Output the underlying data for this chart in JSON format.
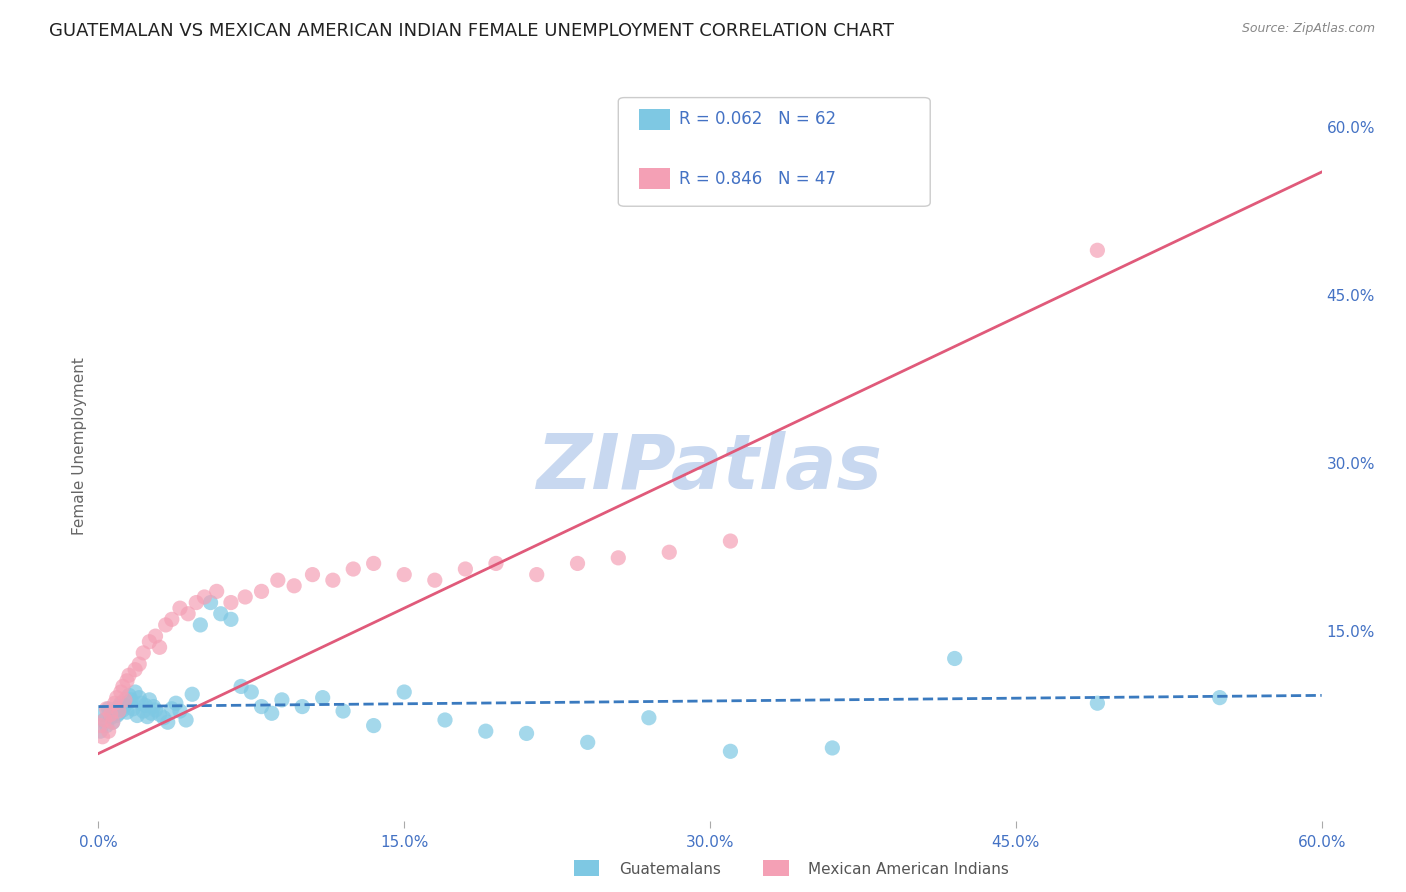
{
  "title": "GUATEMALAN VS MEXICAN AMERICAN INDIAN FEMALE UNEMPLOYMENT CORRELATION CHART",
  "source": "Source: ZipAtlas.com",
  "ylabel": "Female Unemployment",
  "watermark": "ZIPatlas",
  "xlim": [
    0.0,
    0.6
  ],
  "ylim": [
    -0.02,
    0.65
  ],
  "xticks": [
    0.0,
    0.15,
    0.3,
    0.45,
    0.6
  ],
  "xtick_labels": [
    "0.0%",
    "15.0%",
    "30.0%",
    "45.0%",
    "60.0%"
  ],
  "right_yticks": [
    0.6,
    0.45,
    0.3,
    0.15
  ],
  "right_ytick_labels": [
    "60.0%",
    "45.0%",
    "30.0%",
    "15.0%"
  ],
  "blue_color": "#7ec8e3",
  "pink_color": "#f4a0b5",
  "blue_line_color": "#3a7abf",
  "pink_line_color": "#e05a7a",
  "axis_tick_color": "#4472c4",
  "legend_blue_r": "R = 0.062",
  "legend_blue_n": "N = 62",
  "legend_pink_r": "R = 0.846",
  "legend_pink_n": "N = 47",
  "legend_label_blue": "Guatemalans",
  "legend_label_pink": "Mexican American Indians",
  "blue_scatter_x": [
    0.001,
    0.002,
    0.003,
    0.004,
    0.005,
    0.006,
    0.007,
    0.008,
    0.009,
    0.01,
    0.01,
    0.011,
    0.012,
    0.013,
    0.014,
    0.015,
    0.015,
    0.016,
    0.017,
    0.018,
    0.019,
    0.02,
    0.021,
    0.022,
    0.023,
    0.024,
    0.025,
    0.026,
    0.027,
    0.028,
    0.03,
    0.032,
    0.034,
    0.036,
    0.038,
    0.04,
    0.043,
    0.046,
    0.05,
    0.055,
    0.06,
    0.065,
    0.07,
    0.075,
    0.08,
    0.085,
    0.09,
    0.1,
    0.11,
    0.12,
    0.135,
    0.15,
    0.17,
    0.19,
    0.21,
    0.24,
    0.27,
    0.31,
    0.36,
    0.42,
    0.49,
    0.55
  ],
  "blue_scatter_y": [
    0.06,
    0.075,
    0.07,
    0.065,
    0.08,
    0.072,
    0.068,
    0.078,
    0.074,
    0.082,
    0.076,
    0.085,
    0.079,
    0.083,
    0.077,
    0.086,
    0.092,
    0.088,
    0.08,
    0.095,
    0.074,
    0.09,
    0.085,
    0.078,
    0.083,
    0.073,
    0.088,
    0.076,
    0.082,
    0.079,
    0.075,
    0.072,
    0.068,
    0.08,
    0.085,
    0.078,
    0.07,
    0.093,
    0.155,
    0.175,
    0.165,
    0.16,
    0.1,
    0.095,
    0.082,
    0.076,
    0.088,
    0.082,
    0.09,
    0.078,
    0.065,
    0.095,
    0.07,
    0.06,
    0.058,
    0.05,
    0.072,
    0.042,
    0.045,
    0.125,
    0.085,
    0.09
  ],
  "pink_scatter_x": [
    0.001,
    0.002,
    0.003,
    0.004,
    0.005,
    0.006,
    0.007,
    0.008,
    0.009,
    0.01,
    0.011,
    0.012,
    0.013,
    0.014,
    0.015,
    0.018,
    0.02,
    0.022,
    0.025,
    0.028,
    0.03,
    0.033,
    0.036,
    0.04,
    0.044,
    0.048,
    0.052,
    0.058,
    0.065,
    0.072,
    0.08,
    0.088,
    0.096,
    0.105,
    0.115,
    0.125,
    0.135,
    0.15,
    0.165,
    0.18,
    0.195,
    0.215,
    0.235,
    0.255,
    0.28,
    0.31,
    0.49
  ],
  "pink_scatter_y": [
    0.065,
    0.055,
    0.07,
    0.08,
    0.06,
    0.075,
    0.068,
    0.085,
    0.09,
    0.078,
    0.095,
    0.1,
    0.088,
    0.105,
    0.11,
    0.115,
    0.12,
    0.13,
    0.14,
    0.145,
    0.135,
    0.155,
    0.16,
    0.17,
    0.165,
    0.175,
    0.18,
    0.185,
    0.175,
    0.18,
    0.185,
    0.195,
    0.19,
    0.2,
    0.195,
    0.205,
    0.21,
    0.2,
    0.195,
    0.205,
    0.21,
    0.2,
    0.21,
    0.215,
    0.22,
    0.23,
    0.49
  ],
  "blue_line_x": [
    0.0,
    0.6
  ],
  "blue_line_y": [
    0.082,
    0.092
  ],
  "pink_line_x": [
    0.0,
    0.6
  ],
  "pink_line_y": [
    0.04,
    0.56
  ],
  "background_color": "#ffffff",
  "grid_color": "#cccccc",
  "title_fontsize": 13,
  "label_fontsize": 11,
  "tick_fontsize": 11,
  "watermark_color": "#c8d8f0",
  "watermark_fontsize": 55
}
